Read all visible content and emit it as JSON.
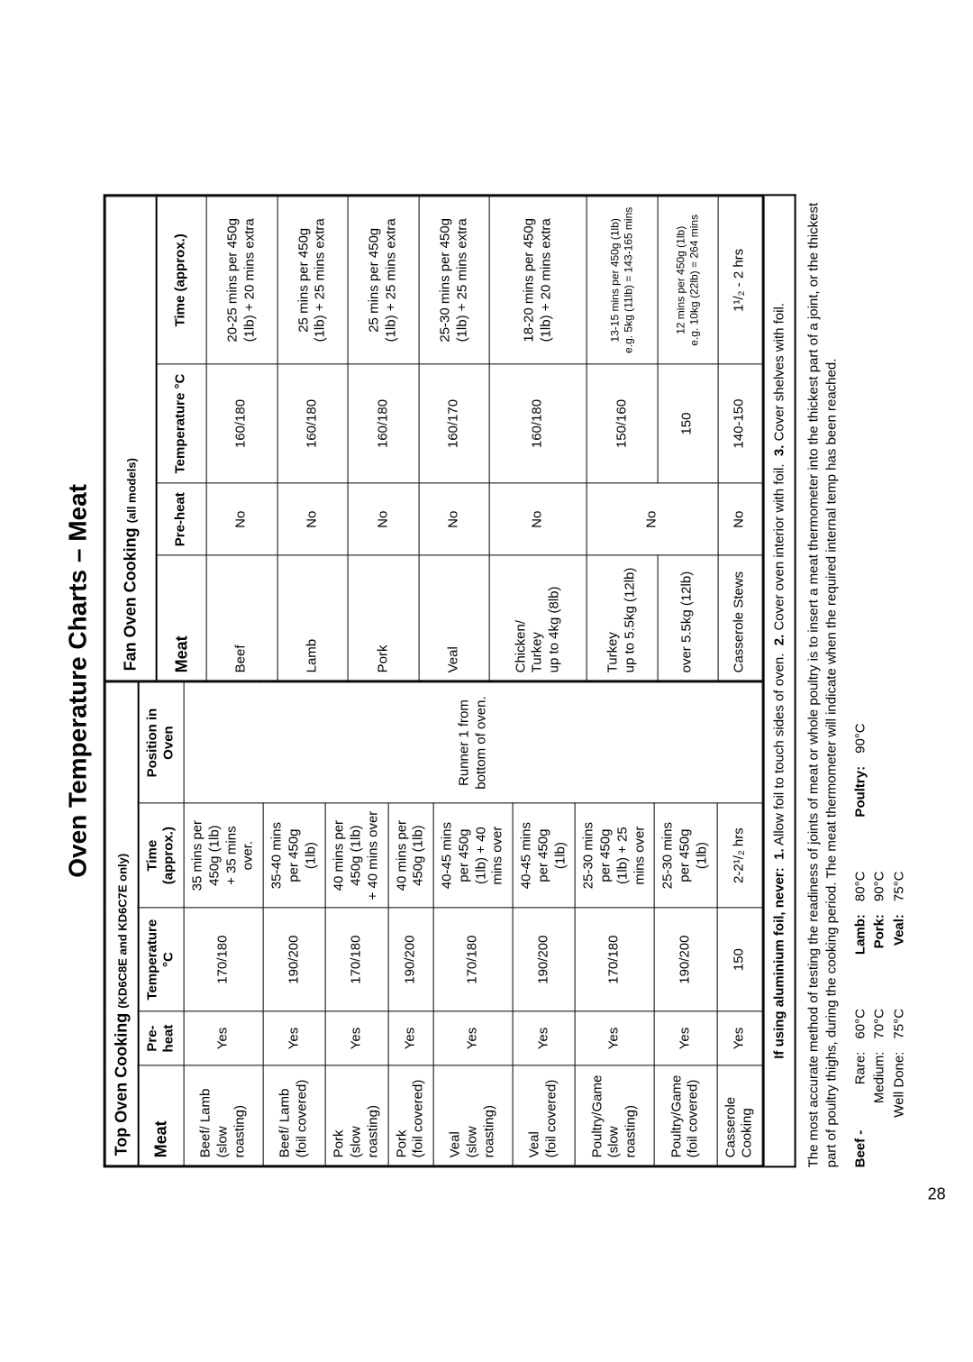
{
  "page_number": "28",
  "title": "Oven Temperature Charts – Meat",
  "top_oven": {
    "heading": "Top Oven Cooking",
    "models": "(KD6C8E and KD6C7E only)",
    "columns": {
      "meat": "Meat",
      "preheat": "Pre-heat",
      "temp": "Temperature °C",
      "time": "Time (approx.)",
      "pos": "Position in Oven"
    },
    "position_note": "Runner 1 from bottom of oven.",
    "rows": [
      {
        "meat": "Beef/ Lamb\n(slow roasting)",
        "pre": "Yes",
        "temp": "170/180",
        "time": "35 mins per 450g (1lb)\n+ 35 mins over."
      },
      {
        "meat": "Beef/ Lamb\n(foil covered)",
        "pre": "Yes",
        "temp": "190/200",
        "time": "35-40 mins per 450g\n(1lb)"
      },
      {
        "meat": "Pork\n(slow roasting)",
        "pre": "Yes",
        "temp": "170/180",
        "time": "40 mins per 450g (1lb)\n+ 40 mins over"
      },
      {
        "meat": "Pork\n(foil covered)",
        "pre": "Yes",
        "temp": "190/200",
        "time": "40 mins per 450g (1lb)"
      },
      {
        "meat": "Veal\n(slow roasting)",
        "pre": "Yes",
        "temp": "170/180",
        "time": "40-45 mins per 450g\n(1lb) + 40 mins over"
      },
      {
        "meat": "Veal\n(foil covered)",
        "pre": "Yes",
        "temp": "190/200",
        "time": "40-45 mins per 450g\n(1lb)"
      },
      {
        "meat": "Poultry/Game\n(slow roasting)",
        "pre": "Yes",
        "temp": "170/180",
        "time": "25-30 mins per 450g\n(1lb) + 25 mins over"
      },
      {
        "meat": "Poultry/Game\n(foil covered)",
        "pre": "Yes",
        "temp": "190/200",
        "time": "25-30 mins per 450g\n(1lb)"
      },
      {
        "meat": "Casserole\nCooking",
        "pre": "Yes",
        "temp": "150",
        "time": "2-2¹/₂ hrs"
      }
    ]
  },
  "fan_oven": {
    "heading": "Fan Oven Cooking",
    "models": "(all models)",
    "columns": {
      "meat": "Meat",
      "preheat": "Pre-heat",
      "temp": "Temperature °C",
      "time": "Time (approx.)"
    },
    "rows": [
      {
        "meat": "Beef",
        "pre": "No",
        "temp": "160/180",
        "time": "20-25 mins per 450g\n(1lb) + 20 mins extra",
        "span": 1
      },
      {
        "meat": "Lamb",
        "pre": "No",
        "temp": "160/180",
        "time": "25 mins per 450g\n(1lb) + 25 mins extra",
        "span": 1
      },
      {
        "meat": "Pork",
        "pre": "No",
        "temp": "160/180",
        "time": "25 mins per 450g\n(1lb) + 25 mins extra",
        "span": 1
      },
      {
        "meat": "Veal",
        "pre": "No",
        "temp": "160/170",
        "time": "25-30 mins per 450g\n(1lb) + 25 mins extra",
        "span": 1
      },
      {
        "meat": "Chicken/\nTurkey\nup to 4kg (8lb)",
        "pre": "No",
        "temp": "160/180",
        "time": "18-20 mins per 450g\n(1lb) + 20 mins extra",
        "span": 1
      },
      {
        "meat": "Turkey\nup to 5.5kg (12lb)",
        "pre": "No",
        "temp": "150/160",
        "time": "13-15 mins per 450g (1lb)\ne.g. 5kg (11lb) = 143-165 mins",
        "span": 1,
        "small": true
      },
      {
        "meat": "over 5.5kg (12lb)",
        "pre": "",
        "temp": "150",
        "time": "12 mins per 450g (1lb)\ne.g. 10kg (22lb) = 264 mins",
        "span": 1,
        "small": true,
        "merge_pre": true
      },
      {
        "meat": "Casserole Stews",
        "pre": "No",
        "temp": "140-150",
        "time": "1¹/₂ - 2 hrs",
        "span": 1
      }
    ]
  },
  "footer_note": {
    "prefix": "If using aluminium foil, never:",
    "p1": "1.",
    "t1": "Allow foil to touch sides of oven.",
    "p2": "2.",
    "t2": "Cover oven interior with foil.",
    "p3": "3.",
    "t3": "Cover shelves with foil."
  },
  "paragraph": "The most accurate method of testing the readiness of joints of meat or whole poultry is to insert a meat thermometer into the thickest part of a joint, or the thickest part of poultry thighs, during the cooking period. The meat thermometer will indicate when the required internal temp has been reached.",
  "temps": {
    "beef": {
      "label": "Beef -",
      "items": [
        [
          "Rare:",
          "60°C"
        ],
        [
          "Medium:",
          "70°C"
        ],
        [
          "Well Done:",
          "75°C"
        ]
      ]
    },
    "other": [
      [
        "Lamb:",
        "80°C"
      ],
      [
        "Pork:",
        "90°C"
      ],
      [
        "Veal:",
        "75°C"
      ]
    ],
    "poultry": [
      "Poultry:",
      "90°C"
    ]
  }
}
